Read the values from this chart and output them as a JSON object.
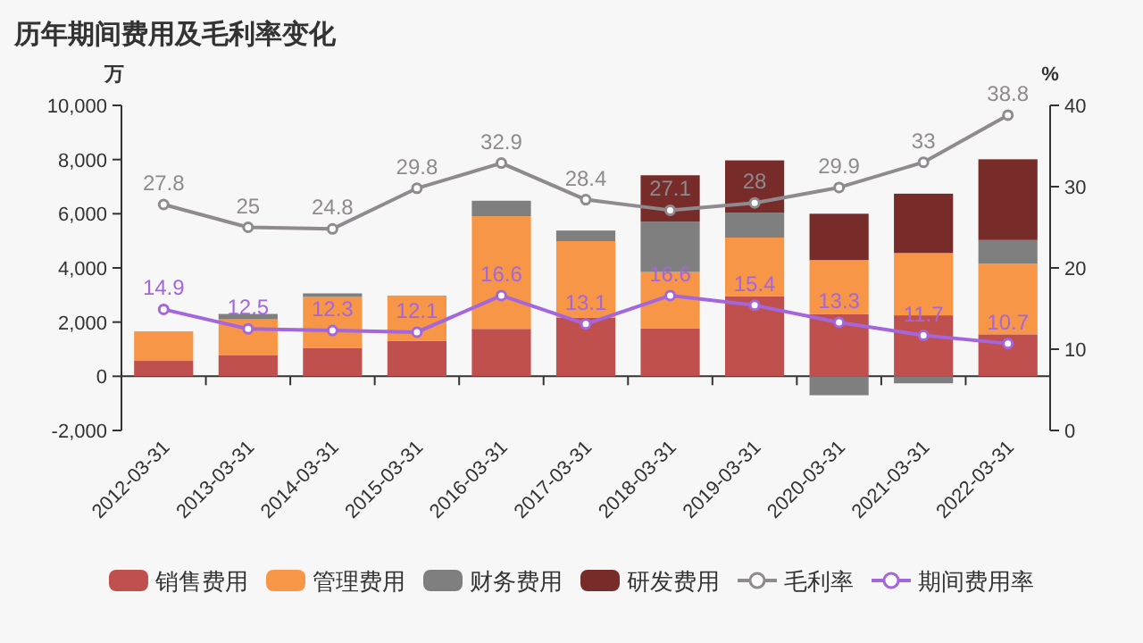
{
  "chart_data": {
    "type": "bar",
    "stacked": true,
    "title": "历年期间费用及毛利率变化",
    "ylabel": "万",
    "y2label": "%",
    "legend": "bottom",
    "categories": [
      "2012-03-31",
      "2013-03-31",
      "2014-03-31",
      "2015-03-31",
      "2016-03-31",
      "2017-03-31",
      "2018-03-31",
      "2019-03-31",
      "2020-03-31",
      "2021-03-31",
      "2022-03-31"
    ],
    "ylim": [
      -2000,
      10000
    ],
    "yticks": [
      {
        "value": -2000,
        "label": "-2,000"
      },
      0,
      {
        "value": 2000,
        "label": "2,000"
      },
      {
        "value": 4000,
        "label": "4,000"
      },
      {
        "value": 6000,
        "label": "6,000"
      },
      {
        "value": 8000,
        "label": "8,000"
      },
      {
        "value": 10000,
        "label": "10,000"
      }
    ],
    "y2lim": [
      0,
      40
    ],
    "y2ticks": [
      0,
      10,
      20,
      30,
      40
    ],
    "series": [
      {
        "name": "销售费用",
        "color": "#c0504d",
        "values": [
          570,
          770,
          1050,
          1310,
          1750,
          2170,
          1770,
          2950,
          2300,
          2250,
          1550
        ]
      },
      {
        "name": "管理费用",
        "color": "#f79646",
        "values": [
          1090,
          1330,
          1880,
          1670,
          4160,
          2820,
          2080,
          2170,
          1990,
          2300,
          2610
        ]
      },
      {
        "name": "财务费用",
        "color": "#7f7f7f",
        "values": [
          0,
          200,
          130,
          0,
          570,
          390,
          1860,
          920,
          -700,
          -260,
          870
        ]
      },
      {
        "name": "研发费用",
        "color": "#772c2a",
        "values": [
          0,
          0,
          0,
          0,
          0,
          0,
          1710,
          1930,
          1710,
          2190,
          2980
        ]
      },
      {
        "name": "毛利率",
        "type": "line",
        "axis": "y2",
        "color": "#8e8a8e",
        "marker": "circle",
        "values": [
          27.8,
          25,
          24.8,
          29.8,
          32.9,
          28.4,
          27.1,
          28,
          29.9,
          33,
          38.8
        ],
        "value_labels": [
          "27.8",
          "25",
          "24.8",
          "29.8",
          "32.9",
          "28.4",
          "27.1",
          "28",
          "29.9",
          "33",
          "38.8"
        ]
      },
      {
        "name": "期间费用率",
        "type": "line",
        "axis": "y2",
        "color": "#a366dc",
        "marker": "circle",
        "values": [
          14.9,
          12.5,
          12.3,
          12.1,
          16.6,
          13.1,
          16.6,
          15.4,
          13.3,
          11.7,
          10.7
        ],
        "value_labels": [
          "14.9",
          "12.5",
          "12.3",
          "12.1",
          "16.6",
          "13.1",
          "16.6",
          "15.4",
          "13.3",
          "11.7",
          "10.7"
        ]
      }
    ]
  }
}
